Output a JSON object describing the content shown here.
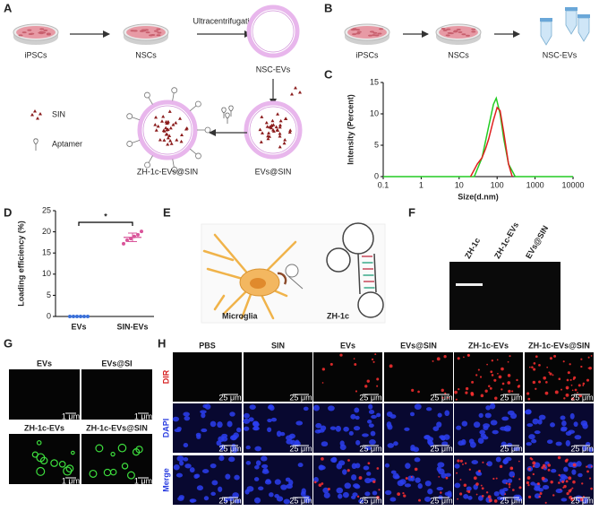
{
  "panel_labels": [
    "A",
    "B",
    "C",
    "D",
    "E",
    "F",
    "G",
    "H"
  ],
  "panel_a": {
    "cells_1": "iPSCs",
    "cells_2": "NSCs",
    "step": "Ultracentrifugation",
    "vesicles": "NSC-EVs",
    "loaded": "EVs@SIN",
    "targeted": "ZH-1c-EVs@SIN",
    "legend": [
      "SIN",
      "Aptamer"
    ]
  },
  "panel_b": {
    "stages": [
      "iPSCs",
      "NSCs",
      "NSC-EVs"
    ]
  },
  "panel_e": {
    "cell": "Microglia",
    "aptamer": "ZH-1c"
  },
  "panel_f": {
    "lanes": [
      "ZH-1c",
      "ZH-1c-EVs",
      "EVs@SIN"
    ]
  },
  "panel_g": {
    "titles": [
      "EVs",
      "EVs@SI",
      "ZH-1c-EVs",
      "ZH-1c-EVs@SIN"
    ],
    "scale_label": "1 μm"
  },
  "panel_h": {
    "columns": [
      "PBS",
      "SIN",
      "EVs",
      "EVs@SIN",
      "ZH-1c-EVs",
      "ZH-1c-EVs@SIN"
    ],
    "rows": [
      "DIR",
      "DAPI",
      "Merge"
    ],
    "scale_label": "25 μm"
  },
  "chart_data": [
    {
      "type": "line",
      "xlabel": "Size(d.nm)",
      "ylabel": "Intensity (Percent)",
      "log_x": true,
      "xlim": [
        0.1,
        10000
      ],
      "xticks": [
        0.1,
        1,
        10,
        100,
        1000,
        10000
      ],
      "ylim": [
        0,
        15
      ],
      "yticks": [
        0,
        5,
        10,
        15
      ],
      "series": [
        {
          "color": "#22cc22",
          "x": [
            0.1,
            10,
            25,
            40,
            60,
            80,
            95,
            120,
            150,
            200,
            300,
            1000,
            10000
          ],
          "values": [
            0,
            0,
            0,
            3,
            8,
            11.5,
            12.5,
            10,
            6,
            2,
            0,
            0,
            0
          ]
        },
        {
          "color": "#e02020",
          "x": [
            20,
            30,
            40,
            50,
            60,
            80,
            100,
            120,
            150,
            200,
            250
          ],
          "values": [
            0,
            2,
            3,
            4.5,
            6,
            9,
            11,
            10.5,
            7,
            2,
            0
          ]
        }
      ]
    },
    {
      "type": "dot",
      "ylabel": "Loading efficiency (%)",
      "categories": [
        "EVs",
        "SIN-EVs"
      ],
      "colors": [
        "#3a6fd8",
        "#d9559a"
      ],
      "values": [
        [
          0,
          0,
          0,
          0,
          0,
          0
        ],
        [
          17.2,
          18.0,
          18.4,
          18.9,
          19.3,
          20.1
        ]
      ],
      "means": [
        0,
        18.7
      ],
      "errors": [
        0,
        1.0
      ],
      "annotation": "*",
      "ylim": [
        0,
        25
      ],
      "yticks": [
        0,
        5,
        10,
        15,
        20,
        25
      ]
    }
  ]
}
